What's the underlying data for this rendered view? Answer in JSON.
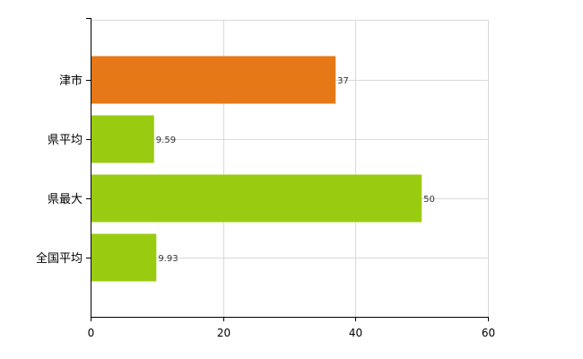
{
  "chart_data": {
    "type": "bar",
    "orientation": "horizontal",
    "categories": [
      "津市",
      "県平均",
      "県最大",
      "全国平均"
    ],
    "values": [
      37,
      9.59,
      50,
      9.93
    ],
    "data_labels": [
      "37",
      "9.59",
      "50",
      "9.93"
    ],
    "highlight_index": 0,
    "colors": {
      "highlight": "#e67817",
      "normal": "#99cc11"
    },
    "xlim": [
      0,
      60
    ],
    "xticks": [
      0,
      20,
      40,
      60
    ],
    "xtick_labels": [
      "0",
      "20",
      "40",
      "60"
    ],
    "grid": true,
    "legend": "none",
    "title": "",
    "xlabel": "",
    "ylabel": ""
  }
}
